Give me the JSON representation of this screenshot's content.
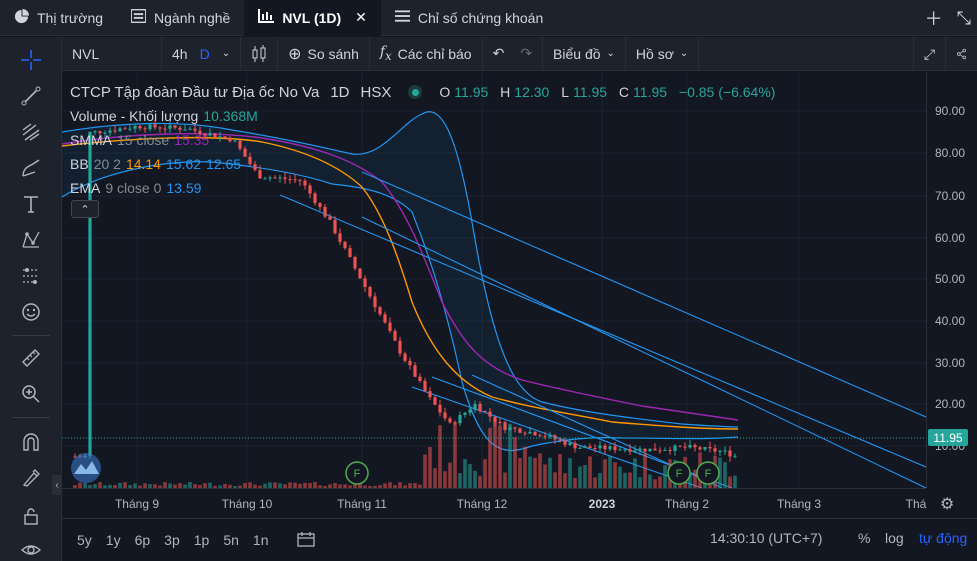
{
  "tabs": [
    {
      "label": "Thị trường",
      "icon": "pie-chart-icon"
    },
    {
      "label": "Ngành nghề",
      "icon": "list-icon"
    },
    {
      "label": "NVL (1D)",
      "icon": "chart-icon",
      "active": true
    },
    {
      "label": "Chỉ số chứng khoán",
      "icon": "menu-icon"
    }
  ],
  "toolbar": {
    "symbol": "NVL",
    "interval_4h": "4h",
    "interval_d": "D",
    "compare": "So sánh",
    "indicators": "Các chỉ báo",
    "chart_type": "Biểu đồ",
    "profile": "Hồ sơ"
  },
  "legend": {
    "name": "CTCP Tập đoàn Đầu tư Địa ốc No Va",
    "interval": "1D",
    "exchange": "HSX",
    "o_label": "O",
    "o": "11.95",
    "h_label": "H",
    "h": "12.30",
    "l_label": "L",
    "l": "11.95",
    "c_label": "C",
    "c": "11.95",
    "change": "−0.85 (−6.64%)",
    "volume_label": "Volume - Khối lượng",
    "volume_value": "10.368M",
    "smma_label": "SMMA",
    "smma_params": "15 close",
    "smma_value": "15.35",
    "bb_label": "BB",
    "bb_params": "20 2",
    "bb_basis": "14.14",
    "bb_upper": "15.62",
    "bb_lower": "12.65",
    "ema_label": "EMA",
    "ema_params": "9 close 0",
    "ema_value": "13.59"
  },
  "price_axis": [
    "90.00",
    "80.00",
    "70.00",
    "60.00",
    "50.00",
    "40.00",
    "30.00",
    "20.00",
    "10.00"
  ],
  "current_price": "11.95",
  "time_axis": [
    "Tháng 9",
    "Tháng 10",
    "Tháng 11",
    "Tháng 12",
    "2023",
    "Tháng 2",
    "Tháng 3",
    "Thá"
  ],
  "bottom": {
    "ranges": [
      "5y",
      "1y",
      "6p",
      "3p",
      "1p",
      "5n",
      "1n"
    ],
    "time": "14:30:10 (UTC+7)",
    "percent": "%",
    "log": "log",
    "auto": "tự động"
  },
  "colors": {
    "up": "#26a69a",
    "down": "#ef5350",
    "smma": "#9c27b0",
    "bb": "#2196f3",
    "ema": "#ff9800",
    "background": "#131722"
  },
  "chart_data": {
    "type": "candlestick",
    "title": "CTCP Tập đoàn Đầu tư Địa ốc No Va",
    "y_range": [
      5,
      97
    ],
    "x_categories": [
      "Tháng 9",
      "Tháng 10",
      "Tháng 11",
      "Tháng 12",
      "2023",
      "Tháng 2",
      "Tháng 3"
    ],
    "close_series": [
      {
        "date": "2022-08-25",
        "close": 83.5
      },
      {
        "date": "2022-09-08",
        "close": 85.0
      },
      {
        "date": "2022-09-22",
        "close": 84.5
      },
      {
        "date": "2022-10-05",
        "close": 82.0
      },
      {
        "date": "2022-10-12",
        "close": 74.0
      },
      {
        "date": "2022-10-24",
        "close": 73.0
      },
      {
        "date": "2022-11-01",
        "close": 64.0
      },
      {
        "date": "2022-11-10",
        "close": 51.0
      },
      {
        "date": "2022-11-21",
        "close": 35.0
      },
      {
        "date": "2022-11-29",
        "close": 25.0
      },
      {
        "date": "2022-12-05",
        "close": 19.0
      },
      {
        "date": "2022-12-12",
        "close": 23.5
      },
      {
        "date": "2022-12-20",
        "close": 18.5
      },
      {
        "date": "2022-12-30",
        "close": 17.0
      },
      {
        "date": "2023-01-10",
        "close": 14.0
      },
      {
        "date": "2023-01-30",
        "close": 13.5
      },
      {
        "date": "2023-02-10",
        "close": 14.0
      },
      {
        "date": "2023-02-20",
        "close": 13.0
      },
      {
        "date": "2023-02-24",
        "close": 11.95
      }
    ],
    "volume_series": [
      {
        "date": "2022-11-25",
        "volume_m": 18
      },
      {
        "date": "2022-12-01",
        "volume_m": 20
      },
      {
        "date": "2022-12-08",
        "volume_m": 15
      },
      {
        "date": "2022-12-15",
        "volume_m": 12
      },
      {
        "date": "2022-12-22",
        "volume_m": 9
      },
      {
        "date": "2023-01-05",
        "volume_m": 8
      },
      {
        "date": "2023-02-24",
        "volume_m": 10.368
      }
    ],
    "last": {
      "open": 11.95,
      "high": 12.3,
      "low": 11.95,
      "close": 11.95,
      "change": -0.85,
      "change_pct": -6.64,
      "volume": "10.368M"
    },
    "indicators": {
      "smma15": 15.35,
      "bb_basis": 14.14,
      "bb_upper": 15.62,
      "bb_lower": 12.65,
      "ema9": 13.59
    }
  }
}
